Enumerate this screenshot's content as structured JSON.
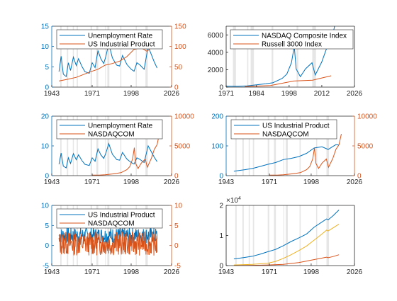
{
  "colors": {
    "blue": "#0072BD",
    "orange": "#D95319",
    "yellow": "#EDB120",
    "recession": "#E6E6E6",
    "axis": "#262626",
    "legend_edge": "#262626"
  },
  "recession_bands": [
    [
      1948.9,
      1949.8
    ],
    [
      1953.5,
      1954.4
    ],
    [
      1957.6,
      1958.3
    ],
    [
      1960.3,
      1961.1
    ],
    [
      1969.9,
      1970.9
    ],
    [
      1973.9,
      1975.2
    ],
    [
      1980.0,
      1980.5
    ],
    [
      1981.5,
      1982.9
    ],
    [
      1990.5,
      1991.2
    ],
    [
      2001.2,
      2001.9
    ],
    [
      2007.9,
      2009.5
    ]
  ],
  "chart_data": [
    {
      "type": "line",
      "title": "",
      "xlabel": "",
      "ylabel": "",
      "ylabel_right": "",
      "xlim": [
        1943,
        2026
      ],
      "xticks": [
        "1943",
        "1971",
        "1998",
        "2026"
      ],
      "ylim": [
        0,
        15
      ],
      "yticks": [
        "0",
        "5",
        "10",
        "15"
      ],
      "ylim_right": [
        0,
        150
      ],
      "yticks_right": [
        "0",
        "50",
        "100",
        "150"
      ],
      "legend": "top-left",
      "series": [
        {
          "name": "Unemployment Rate",
          "axis": "left",
          "color": "blue",
          "x": [
            1948,
            1949.5,
            1951,
            1953,
            1954.5,
            1956,
            1958,
            1960,
            1961.5,
            1964,
            1966,
            1969,
            1971,
            1973,
            1975,
            1977,
            1979,
            1980.5,
            1982.5,
            1985,
            1988,
            1990,
            1992,
            1995,
            1998,
            2000,
            2002,
            2004,
            2007,
            2009.8,
            2012,
            2014,
            2016
          ],
          "y": [
            3.8,
            7.6,
            3.2,
            2.6,
            6.0,
            4.1,
            7.4,
            5.3,
            7.0,
            5.0,
            3.8,
            3.4,
            6.0,
            4.8,
            9.0,
            7.0,
            5.8,
            7.6,
            10.8,
            7.2,
            5.4,
            5.2,
            7.8,
            5.6,
            4.4,
            3.9,
            6.0,
            5.5,
            4.4,
            10.0,
            8.0,
            6.2,
            4.7
          ]
        },
        {
          "name": "US Industrial Product",
          "axis": "right",
          "color": "orange",
          "x": [
            1948,
            1955,
            1960,
            1965,
            1970,
            1975,
            1980,
            1985,
            1990,
            1995,
            2000,
            2005,
            2009,
            2012,
            2014,
            2016
          ],
          "y": [
            15,
            20,
            24,
            31,
            38,
            44,
            54,
            58,
            64,
            75,
            93,
            97,
            88,
            98,
            104,
            103
          ]
        }
      ]
    },
    {
      "type": "line",
      "title": "",
      "xlabel": "",
      "ylabel": "",
      "xlim": [
        1971,
        2026
      ],
      "xticks": [
        "1971",
        "1984",
        "1998",
        "2012",
        "2026"
      ],
      "ylim": [
        0,
        7000
      ],
      "yticks": [
        "0",
        "2000",
        "4000",
        "6000"
      ],
      "legend": "top-right",
      "series": [
        {
          "name": "NASDAQ Composite Index",
          "color": "blue",
          "x": [
            1971,
            1976,
            1980,
            1985,
            1988,
            1991,
            1995,
            1997,
            1999,
            2000.2,
            2001,
            2002.8,
            2005,
            2007.8,
            2009.2,
            2012,
            2014,
            2016,
            2017.5
          ],
          "y": [
            100,
            90,
            150,
            290,
            380,
            500,
            1000,
            1500,
            2800,
            4700,
            2100,
            1200,
            2100,
            2800,
            1400,
            2900,
            4400,
            5200,
            7000
          ]
        },
        {
          "name": "Russell 3000 Index",
          "color": "orange",
          "x": [
            1979,
            1990,
            2000,
            2008,
            2016
          ],
          "y": [
            60,
            180,
            700,
            800,
            1300
          ]
        }
      ]
    },
    {
      "type": "line",
      "title": "",
      "xlabel": "",
      "ylabel": "",
      "ylabel_right": "",
      "xlim": [
        1943,
        2026
      ],
      "xticks": [
        "1943",
        "1971",
        "1998",
        "2026"
      ],
      "ylim": [
        0,
        20
      ],
      "yticks": [
        "0",
        "10",
        "20"
      ],
      "ylim_right": [
        0,
        10000
      ],
      "yticks_right": [
        "0",
        "5000",
        "10000"
      ],
      "legend": "top-left",
      "series": [
        {
          "name": "Unemployment Rate",
          "axis": "left",
          "color": "blue",
          "x": [
            1948,
            1949.5,
            1951,
            1953,
            1954.5,
            1956,
            1958,
            1960,
            1961.5,
            1964,
            1966,
            1969,
            1971,
            1973,
            1975,
            1977,
            1979,
            1980.5,
            1982.5,
            1985,
            1988,
            1990,
            1992,
            1995,
            1998,
            2000,
            2002,
            2004,
            2007,
            2009.8,
            2012,
            2014,
            2016
          ],
          "y": [
            3.8,
            7.6,
            3.2,
            2.6,
            6.0,
            4.1,
            7.4,
            5.3,
            7.0,
            5.0,
            3.8,
            3.4,
            6.0,
            4.8,
            9.0,
            7.0,
            5.8,
            7.6,
            10.8,
            7.2,
            5.4,
            5.2,
            7.8,
            5.6,
            4.4,
            3.9,
            6.0,
            5.5,
            4.4,
            10.0,
            8.0,
            6.2,
            4.7
          ]
        },
        {
          "name": "NASDAQCOM",
          "axis": "right",
          "color": "orange",
          "x": [
            1971,
            1976,
            1980,
            1985,
            1988,
            1991,
            1995,
            1997,
            1999,
            2000.2,
            2001,
            2002.8,
            2005,
            2007.8,
            2009.2,
            2012,
            2014,
            2016,
            2017.5
          ],
          "y": [
            100,
            90,
            150,
            290,
            380,
            500,
            1000,
            1500,
            2800,
            4700,
            2100,
            1200,
            2100,
            2800,
            1400,
            2900,
            4400,
            5200,
            7000
          ]
        }
      ]
    },
    {
      "type": "line",
      "title": "",
      "xlabel": "",
      "ylabel": "",
      "ylabel_right": "",
      "xlim": [
        1943,
        2026
      ],
      "xticks": [
        "1943",
        "1971",
        "1998",
        "2026"
      ],
      "ylim": [
        0,
        200
      ],
      "yticks": [
        "0",
        "100",
        "200"
      ],
      "ylim_right": [
        0,
        10000
      ],
      "yticks_right": [
        "0",
        "5000",
        "10000"
      ],
      "legend": "top-left",
      "series": [
        {
          "name": "US Industrial Product",
          "axis": "left",
          "color": "blue",
          "x": [
            1948,
            1955,
            1960,
            1965,
            1970,
            1975,
            1980,
            1985,
            1990,
            1995,
            2000,
            2005,
            2009,
            2012,
            2014,
            2016
          ],
          "y": [
            15,
            20,
            24,
            31,
            38,
            44,
            54,
            58,
            64,
            75,
            93,
            97,
            88,
            98,
            104,
            103
          ]
        },
        {
          "name": "NASDAQCOM",
          "axis": "right",
          "color": "orange",
          "x": [
            1971,
            1976,
            1980,
            1985,
            1988,
            1991,
            1995,
            1997,
            1999,
            2000.2,
            2001,
            2002.8,
            2005,
            2007.8,
            2009.2,
            2012,
            2014,
            2016,
            2017.5
          ],
          "y": [
            100,
            90,
            150,
            290,
            380,
            500,
            1000,
            1500,
            2800,
            4700,
            2100,
            1200,
            2100,
            2800,
            1400,
            2900,
            4400,
            5200,
            7000
          ]
        }
      ]
    },
    {
      "type": "line",
      "title": "",
      "xlabel": "",
      "ylabel": "",
      "ylabel_right": "",
      "xlim": [
        1943,
        2026
      ],
      "xticks": [
        "1943",
        "1971",
        "1998",
        "2026"
      ],
      "ylim": [
        -5,
        10
      ],
      "yticks": [
        "-5",
        "0",
        "5",
        "10"
      ],
      "ylim_right": [
        -5,
        10
      ],
      "yticks_right": [
        "-5",
        "0",
        "5",
        "10"
      ],
      "legend": "top-left",
      "series": [
        {
          "name": "US Industrial Product",
          "axis": "left",
          "color": "blue",
          "noise": true,
          "x_start": 1948,
          "x_end": 2016,
          "center": 2.5,
          "amplitude": 2.0
        },
        {
          "name": "NASDAQCOM",
          "axis": "right",
          "color": "orange",
          "noise": true,
          "x_start": 1948,
          "x_end": 2016,
          "center": 0.5,
          "amplitude": 3.0
        }
      ]
    },
    {
      "type": "line",
      "title": "",
      "xlabel": "",
      "ylabel": "",
      "xlim": [
        1943,
        2026
      ],
      "xticks": [
        "1943",
        "1971",
        "1998",
        "2026"
      ],
      "ylim": [
        0,
        2
      ],
      "yticks": [
        "0",
        "1",
        "2"
      ],
      "y_exponent": "4",
      "legend": "none",
      "series": [
        {
          "color": "blue",
          "x": [
            1948,
            1955,
            1960,
            1965,
            1970,
            1975,
            1980,
            1985,
            1990,
            1995,
            2000,
            2005,
            2008,
            2009,
            2012,
            2016
          ],
          "y": [
            0.22,
            0.27,
            0.31,
            0.38,
            0.46,
            0.54,
            0.66,
            0.8,
            0.92,
            1.05,
            1.28,
            1.45,
            1.55,
            1.52,
            1.65,
            1.85
          ]
        },
        {
          "color": "yellow",
          "x": [
            1948,
            1960,
            1970,
            1975,
            1980,
            1985,
            1990,
            1995,
            2000,
            2005,
            2008,
            2009,
            2012,
            2016
          ],
          "y": [
            0.02,
            0.04,
            0.08,
            0.14,
            0.24,
            0.36,
            0.5,
            0.65,
            0.85,
            1.05,
            1.18,
            1.15,
            1.25,
            1.38
          ]
        },
        {
          "color": "orange",
          "x": [
            1948,
            1960,
            1970,
            1980,
            1990,
            2000,
            2008,
            2009,
            2012,
            2016
          ],
          "y": [
            0.0,
            0.01,
            0.02,
            0.04,
            0.1,
            0.2,
            0.28,
            0.26,
            0.3,
            0.36
          ]
        }
      ]
    }
  ]
}
